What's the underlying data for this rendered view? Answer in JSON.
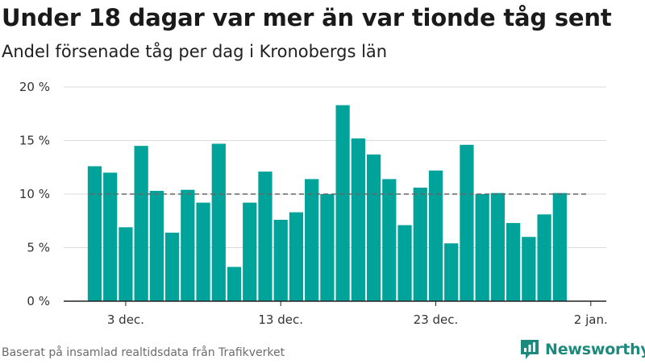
{
  "header": {
    "title": "Under 18 dagar var mer än var tionde tåg sent",
    "subtitle": "Andel försenade tåg per dag i Kronobergs län"
  },
  "footer": {
    "source": "Baserat på insamlad realtidsdata från Trafikverket",
    "brand": "Newsworthy"
  },
  "colors": {
    "bar": "#00a39a",
    "grid": "#d9d9d9",
    "reference_line": "#666666",
    "brand": "#1c8a7c"
  },
  "icons": {
    "brand_logo": "newsworthy-logo-icon"
  },
  "chart_data": {
    "type": "bar",
    "x": [
      "2019-12-01",
      "2019-12-02",
      "2019-12-03",
      "2019-12-04",
      "2019-12-05",
      "2019-12-06",
      "2019-12-07",
      "2019-12-08",
      "2019-12-09",
      "2019-12-10",
      "2019-12-11",
      "2019-12-12",
      "2019-12-13",
      "2019-12-14",
      "2019-12-15",
      "2019-12-16",
      "2019-12-17",
      "2019-12-18",
      "2019-12-19",
      "2019-12-20",
      "2019-12-21",
      "2019-12-22",
      "2019-12-23",
      "2019-12-24",
      "2019-12-25",
      "2019-12-26",
      "2019-12-27",
      "2019-12-28",
      "2019-12-29",
      "2019-12-30",
      "2019-12-31"
    ],
    "values": [
      12.6,
      12.0,
      6.9,
      14.5,
      10.3,
      6.4,
      10.4,
      9.2,
      14.7,
      3.2,
      9.2,
      12.1,
      7.6,
      8.3,
      11.4,
      10.0,
      18.3,
      15.2,
      13.7,
      11.4,
      7.1,
      10.6,
      12.2,
      5.4,
      14.6,
      10.0,
      10.1,
      7.3,
      6.0,
      8.1,
      10.1
    ],
    "reference_line": 10,
    "ylim": [
      0,
      20
    ],
    "yticks": [
      0,
      5,
      10,
      15,
      20
    ],
    "ytick_labels": [
      "0 %",
      "5 %",
      "10 %",
      "15 %",
      "20 %"
    ],
    "xticks": [
      "2019-12-03",
      "2019-12-13",
      "2019-12-23",
      "2020-01-02"
    ],
    "xtick_labels": [
      "3 dec.",
      "13 dec.",
      "23 dec.",
      "2 jan."
    ],
    "grid": true,
    "legend": false
  }
}
